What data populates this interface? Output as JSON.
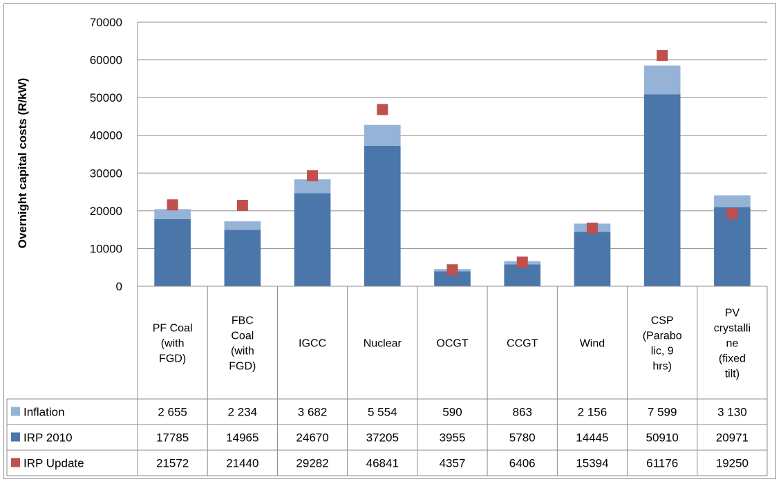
{
  "chart_data": {
    "type": "bar",
    "stacked": true,
    "title": "",
    "xlabel": "",
    "ylabel": "Overnight capital costs (R/kW)",
    "ylim": [
      0,
      70000
    ],
    "yticks": [
      0,
      10000,
      20000,
      30000,
      40000,
      50000,
      60000,
      70000
    ],
    "grid": true,
    "legend": "table",
    "categories": [
      "PF Coal (with FGD)",
      "FBC Coal (with FGD)",
      "IGCC",
      "Nuclear",
      "OCGT",
      "CCGT",
      "Wind",
      "CSP (Parabolic, 9 hrs)",
      "PV crystalline (fixed tilt)"
    ],
    "category_lines": [
      [
        "PF Coal",
        "(with",
        "FGD)"
      ],
      [
        "FBC",
        "Coal",
        "(with",
        "FGD)"
      ],
      [
        "IGCC"
      ],
      [
        "Nuclear"
      ],
      [
        "OCGT"
      ],
      [
        "CCGT"
      ],
      [
        "Wind"
      ],
      [
        "CSP",
        "(Parabo",
        "lic, 9",
        "hrs)"
      ],
      [
        "PV",
        "crystalli",
        "ne",
        "(fixed",
        "tilt)"
      ]
    ],
    "series": [
      {
        "name": "Inflation",
        "kind": "bar",
        "color": "#95b3d7",
        "values": [
          2655,
          2234,
          3682,
          5554,
          590,
          863,
          2156,
          7599,
          3130
        ],
        "labels": [
          "2 655",
          "2 234",
          "3 682",
          "5 554",
          "590",
          "863",
          "2 156",
          "7 599",
          "3 130"
        ]
      },
      {
        "name": "IRP 2010",
        "kind": "bar",
        "color": "#4a76aa",
        "values": [
          17785,
          14965,
          24670,
          37205,
          3955,
          5780,
          14445,
          50910,
          20971
        ],
        "labels": [
          "17785",
          "14965",
          "24670",
          "37205",
          "3955",
          "5780",
          "14445",
          "50910",
          "20971"
        ]
      },
      {
        "name": "IRP Update",
        "kind": "marker",
        "color": "#c0504d",
        "values": [
          21572,
          21440,
          29282,
          46841,
          4357,
          6406,
          15394,
          61176,
          19250
        ],
        "labels": [
          "21572",
          "21440",
          "29282",
          "46841",
          "4357",
          "6406",
          "15394",
          "61176",
          "19250"
        ]
      }
    ],
    "stack_order": [
      "IRP 2010",
      "Inflation"
    ]
  }
}
